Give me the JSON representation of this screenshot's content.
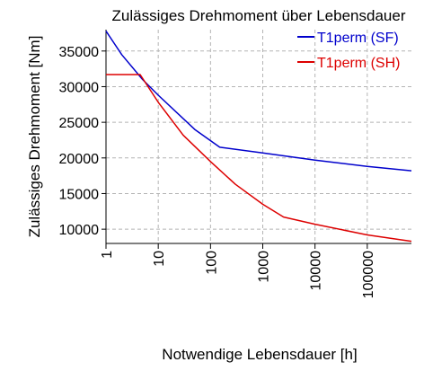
{
  "chart_data": {
    "type": "line",
    "title": "Zulässiges Drehmoment über Lebensdauer",
    "xlabel": "Notwendige Lebensdauer [h]",
    "ylabel": "Zulässiges Drehmoment [Nm]",
    "x_scale": "log",
    "xlim": [
      1,
      700000
    ],
    "ylim": [
      8000,
      38000
    ],
    "x_ticks": [
      1,
      10,
      100,
      1000,
      10000,
      100000
    ],
    "x_tick_labels": [
      "1",
      "10",
      "100",
      "1000",
      "10000",
      "100000"
    ],
    "y_ticks": [
      10000,
      15000,
      20000,
      25000,
      30000,
      35000
    ],
    "y_tick_labels": [
      "10000",
      "15000",
      "20000",
      "25000",
      "30000",
      "35000"
    ],
    "grid": true,
    "legend_position": "top-right",
    "series": [
      {
        "name": "T1perm (SF)",
        "color": "#0000cc",
        "x": [
          1,
          2,
          5,
          10,
          50,
          150,
          1000,
          10000,
          100000,
          700000
        ],
        "y": [
          37800,
          34500,
          31000,
          28800,
          24000,
          21500,
          20700,
          19700,
          18800,
          18200
        ]
      },
      {
        "name": "T1perm (SH)",
        "color": "#dd0000",
        "x": [
          1,
          4.5,
          10,
          30,
          100,
          300,
          1000,
          2500,
          10000,
          100000,
          700000
        ],
        "y": [
          31700,
          31700,
          27800,
          23200,
          19500,
          16300,
          13500,
          11700,
          10700,
          9200,
          8300
        ]
      }
    ]
  }
}
